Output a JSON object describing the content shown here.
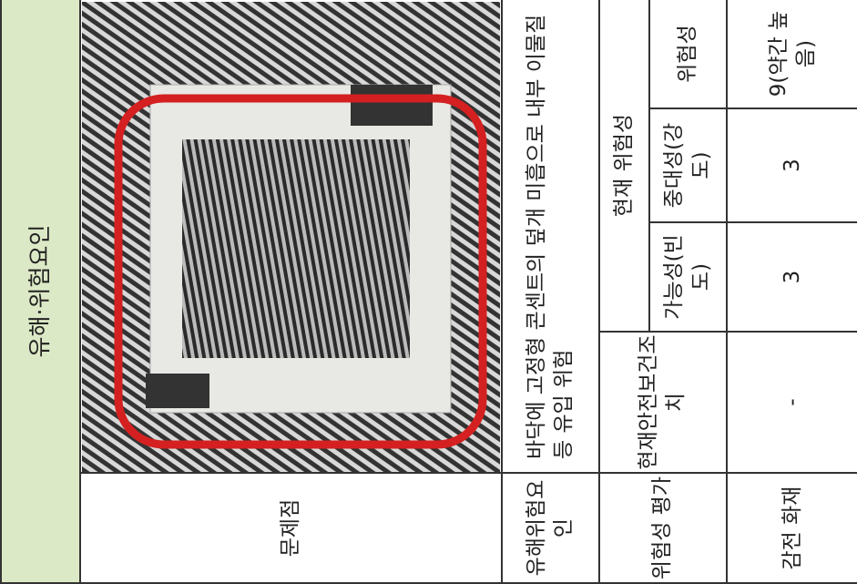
{
  "header": {
    "title": "유해·위험요인"
  },
  "problem": {
    "label": "문제점"
  },
  "hazard": {
    "label": "유해위험요인",
    "description": "바닥에 고정형 콘센트의 덮개 미흡으로 내부 이물질 등 유입 위험"
  },
  "assessment": {
    "label": "위험성 평가",
    "current_measures": "현재안전보건조치",
    "current_risk": "현재 위험성",
    "columns": [
      "가능성(빈도)",
      "중대성(강도)",
      "위험성"
    ]
  },
  "result": {
    "label": "감전 화재",
    "current_measures": "-",
    "values": [
      "3",
      "3",
      "9(약간 높음)"
    ]
  }
}
